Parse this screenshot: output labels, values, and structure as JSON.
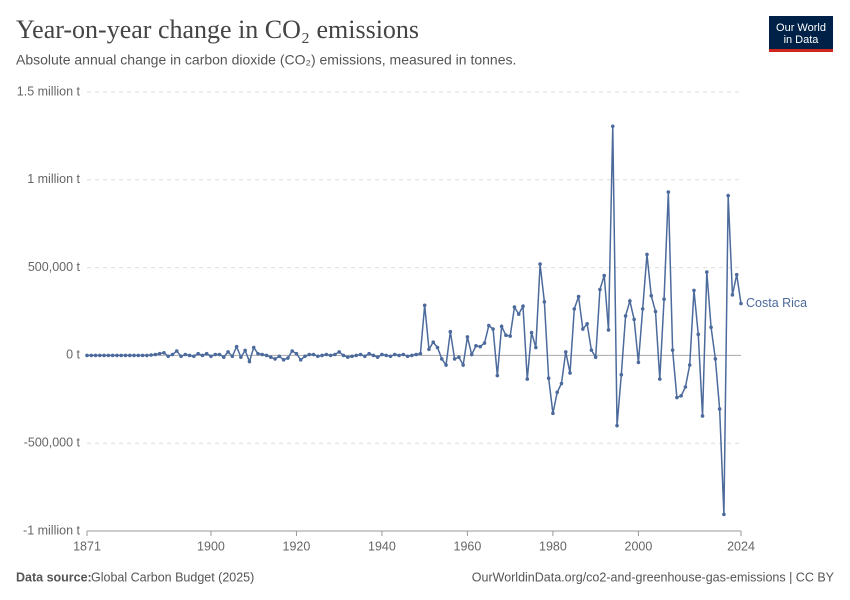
{
  "chart_data": {
    "type": "line",
    "title": "Year-on-year change in CO₂ emissions",
    "subtitle": "Absolute annual change in carbon dioxide (CO₂) emissions, measured in tonnes.",
    "logo": [
      "Our World",
      "in Data"
    ],
    "source_label": "Data source:",
    "source": "Global Carbon Budget (2025)",
    "footer_right": "OurWorldinData.org/co2-and-greenhouse-gas-emissions | CC BY",
    "x": [
      1871,
      1872,
      1873,
      1874,
      1875,
      1876,
      1877,
      1878,
      1879,
      1880,
      1881,
      1882,
      1883,
      1884,
      1885,
      1886,
      1887,
      1888,
      1889,
      1890,
      1891,
      1892,
      1893,
      1894,
      1895,
      1896,
      1897,
      1898,
      1899,
      1900,
      1901,
      1902,
      1903,
      1904,
      1905,
      1906,
      1907,
      1908,
      1909,
      1910,
      1911,
      1912,
      1913,
      1914,
      1915,
      1916,
      1917,
      1918,
      1919,
      1920,
      1921,
      1922,
      1923,
      1924,
      1925,
      1926,
      1927,
      1928,
      1929,
      1930,
      1931,
      1932,
      1933,
      1934,
      1935,
      1936,
      1937,
      1938,
      1939,
      1940,
      1941,
      1942,
      1943,
      1944,
      1945,
      1946,
      1947,
      1948,
      1949,
      1950,
      1951,
      1952,
      1953,
      1954,
      1955,
      1956,
      1957,
      1958,
      1959,
      1960,
      1961,
      1962,
      1963,
      1964,
      1965,
      1966,
      1967,
      1968,
      1969,
      1970,
      1971,
      1972,
      1973,
      1974,
      1975,
      1976,
      1977,
      1978,
      1979,
      1980,
      1981,
      1982,
      1983,
      1984,
      1985,
      1986,
      1987,
      1988,
      1989,
      1990,
      1991,
      1992,
      1993,
      1994,
      1995,
      1996,
      1997,
      1998,
      1999,
      2000,
      2001,
      2002,
      2003,
      2004,
      2005,
      2006,
      2007,
      2008,
      2009,
      2010,
      2011,
      2012,
      2013,
      2014,
      2015,
      2016,
      2017,
      2018,
      2019,
      2020,
      2021,
      2022,
      2023,
      2024
    ],
    "series": [
      {
        "name": "Costa Rica",
        "color": "#4c6a9c",
        "values": [
          0,
          0,
          0,
          0,
          0,
          0,
          0,
          0,
          0,
          0,
          0,
          0,
          0,
          0,
          0,
          2000,
          5000,
          10000,
          15000,
          -5000,
          5000,
          25000,
          -5000,
          5000,
          0,
          -5000,
          10000,
          0,
          10000,
          -5000,
          5000,
          5000,
          -10000,
          20000,
          -5000,
          50000,
          -10000,
          28000,
          -35000,
          45000,
          10000,
          5000,
          0,
          -10000,
          -20000,
          -5000,
          -25000,
          -15000,
          25000,
          10000,
          -25000,
          -5000,
          5000,
          5000,
          -5000,
          0,
          5000,
          0,
          5000,
          20000,
          0,
          -10000,
          -5000,
          0,
          5000,
          -5000,
          10000,
          0,
          -10000,
          5000,
          0,
          -5000,
          5000,
          0,
          5000,
          -5000,
          0,
          5000,
          10000,
          285000,
          35000,
          75000,
          45000,
          -20000,
          -55000,
          135000,
          -20000,
          -10000,
          -55000,
          105000,
          5000,
          55000,
          50000,
          70000,
          170000,
          150000,
          -115000,
          165000,
          115000,
          110000,
          275000,
          235000,
          280000,
          -135000,
          130000,
          45000,
          520000,
          305000,
          -130000,
          -330000,
          -210000,
          -160000,
          20000,
          -100000,
          265000,
          335000,
          150000,
          180000,
          30000,
          -10000,
          375000,
          455000,
          145000,
          1305000,
          -400000,
          -110000,
          225000,
          310000,
          205000,
          -40000,
          265000,
          575000,
          340000,
          250000,
          -135000,
          320000,
          930000,
          30000,
          -240000,
          -230000,
          -180000,
          -55000,
          370000,
          120000,
          -345000,
          475000,
          160000,
          -20000,
          -305000,
          -905000,
          910000,
          345000,
          460000,
          295000
        ]
      }
    ],
    "xlim": [
      1871,
      2024
    ],
    "xticks": [
      1871,
      1900,
      1920,
      1940,
      1960,
      1980,
      2000,
      2024
    ],
    "ylim": [
      -1000000,
      1500000
    ],
    "yticks": [
      {
        "value": -1000000,
        "label": "-1 million t"
      },
      {
        "value": -500000,
        "label": "-500,000 t"
      },
      {
        "value": 0,
        "label": "0 t"
      },
      {
        "value": 500000,
        "label": "500,000 t"
      },
      {
        "value": 1000000,
        "label": "1 million t"
      },
      {
        "value": 1500000,
        "label": "1.5 million t"
      }
    ],
    "grid": true
  }
}
